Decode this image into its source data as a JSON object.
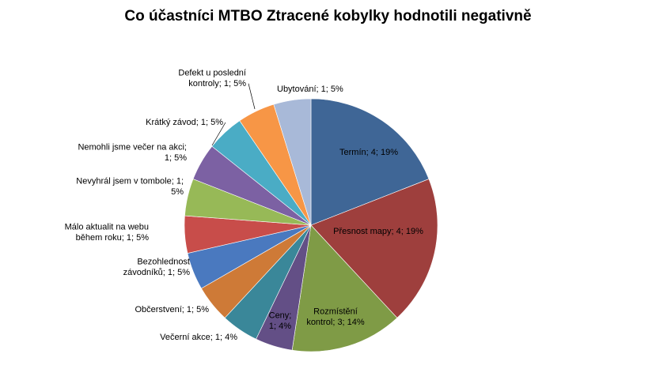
{
  "chart_data": {
    "type": "pie",
    "title": "Co účastníci MTBO Ztracené kobylky hodnotili negativně",
    "slices": [
      {
        "category": "Termín",
        "value": 4,
        "percent": "19%",
        "label_lines": [
          "Termín; 4; 19%"
        ],
        "color": "#3F6696"
      },
      {
        "category": "Přesnost mapy",
        "value": 4,
        "percent": "19%",
        "label_lines": [
          "Přesnost mapy; 4; 19%"
        ],
        "color": "#9E3F3D"
      },
      {
        "category": "Rozmístění kontrol",
        "value": 3,
        "percent": "14%",
        "label_lines": [
          "Rozmístění",
          "kontrol; 3; 14%"
        ],
        "color": "#7F9B46"
      },
      {
        "category": "Ceny",
        "value": 1,
        "percent": "4%",
        "label_lines": [
          "Ceny;",
          "1; 4%"
        ],
        "color": "#634F86"
      },
      {
        "category": "Večerní akce",
        "value": 1,
        "percent": "4%",
        "label_lines": [
          "Večerní akce; 1; 4%"
        ],
        "color": "#3A8799"
      },
      {
        "category": "Občerstvení",
        "value": 1,
        "percent": "5%",
        "label_lines": [
          "Občerstvení; 1; 5%"
        ],
        "color": "#CE7A37"
      },
      {
        "category": "Bezohlednost závodníků",
        "value": 1,
        "percent": "5%",
        "label_lines": [
          "Bezohlednost",
          "závodníků; 1; 5%"
        ],
        "color": "#4A79BF"
      },
      {
        "category": "Málo aktualit na webu během roku",
        "value": 1,
        "percent": "5%",
        "label_lines": [
          "Málo aktualit na webu",
          "během roku; 1; 5%"
        ],
        "color": "#C84D4A"
      },
      {
        "category": "Nevyhrál jsem v tombole",
        "value": 1,
        "percent": "5%",
        "label_lines": [
          "Nevyhrál jsem v tombole;  1;",
          "5%"
        ],
        "color": "#97B957"
      },
      {
        "category": "Nemohli jsme večer na akci",
        "value": 1,
        "percent": "5%",
        "label_lines": [
          "Nemohli jsme večer na akci;",
          "1; 5%"
        ],
        "color": "#7C61A3"
      },
      {
        "category": "Krátký závod",
        "value": 1,
        "percent": "5%",
        "label_lines": [
          "Krátký závod; 1; 5%"
        ],
        "color": "#4AACC5"
      },
      {
        "category": "Defekt u poslední kontroly",
        "value": 1,
        "percent": "5%",
        "label_lines": [
          "Defekt  u poslední",
          "kontroly; 1; 5%"
        ],
        "color": "#F79646"
      },
      {
        "category": "Ubytování",
        "value": 1,
        "percent": "5%",
        "label_lines": [
          "Ubytování; 1; 5%"
        ],
        "color": "#A8B9D8"
      }
    ],
    "legend": "none",
    "start_angle_deg": 0,
    "direction": "clockwise"
  }
}
